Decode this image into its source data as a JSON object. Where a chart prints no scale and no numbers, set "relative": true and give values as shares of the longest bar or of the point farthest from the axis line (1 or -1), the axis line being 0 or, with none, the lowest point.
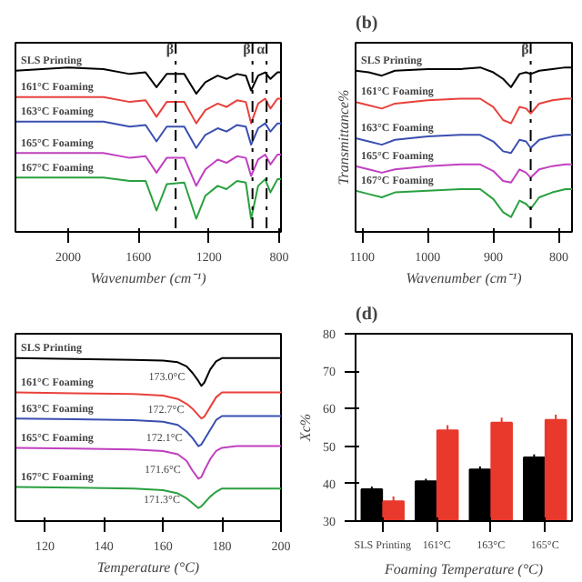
{
  "chart_data": [
    {
      "type": "line",
      "relative": true,
      "xlabel": "Wavenumber (cm⁻¹)",
      "xlim": [
        2300,
        790
      ],
      "xticks": [
        2000,
        1600,
        1200,
        800
      ],
      "x": [
        2300,
        2000,
        1800,
        1650,
        1560,
        1498,
        1440,
        1340,
        1272,
        1220,
        1150,
        1100,
        1040,
        990,
        960,
        920,
        880,
        850,
        810,
        790
      ],
      "series": [
        {
          "name": "SLS Printing",
          "color": "#000000",
          "values": [
            0.98,
            1.0,
            0.99,
            0.96,
            0.97,
            0.88,
            0.96,
            0.96,
            0.84,
            0.91,
            0.95,
            0.93,
            0.96,
            0.95,
            0.86,
            0.95,
            0.97,
            0.93,
            0.97,
            0.97
          ]
        },
        {
          "name": "161°C Foaming",
          "color": "#e8413c",
          "values": [
            0.82,
            0.82,
            0.82,
            0.79,
            0.8,
            0.7,
            0.79,
            0.79,
            0.66,
            0.74,
            0.78,
            0.76,
            0.8,
            0.79,
            0.66,
            0.78,
            0.81,
            0.75,
            0.81,
            0.81
          ]
        },
        {
          "name": "163°C Foaming",
          "color": "#3a4fb0",
          "values": [
            0.67,
            0.67,
            0.67,
            0.64,
            0.65,
            0.55,
            0.64,
            0.64,
            0.51,
            0.59,
            0.63,
            0.61,
            0.65,
            0.64,
            0.53,
            0.63,
            0.66,
            0.61,
            0.66,
            0.66
          ]
        },
        {
          "name": "165°C Foaming",
          "color": "#c040c0",
          "values": [
            0.48,
            0.48,
            0.48,
            0.45,
            0.46,
            0.36,
            0.45,
            0.45,
            0.28,
            0.38,
            0.44,
            0.42,
            0.46,
            0.45,
            0.34,
            0.44,
            0.47,
            0.41,
            0.47,
            0.47
          ]
        },
        {
          "name": "167°C Foaming",
          "color": "#2aa040",
          "values": [
            0.33,
            0.33,
            0.33,
            0.31,
            0.31,
            0.13,
            0.29,
            0.3,
            0.08,
            0.22,
            0.28,
            0.26,
            0.31,
            0.3,
            0.08,
            0.28,
            0.32,
            0.24,
            0.32,
            0.32
          ]
        }
      ],
      "ref_lines": [
        {
          "axis": "x",
          "value": 1389,
          "label": "β",
          "line_style": "dashdot"
        },
        {
          "axis": "x",
          "value": 952,
          "label": "β",
          "line_style": "dashdot"
        },
        {
          "axis": "x",
          "value": 872,
          "label": "α",
          "line_style": "dashdot"
        }
      ]
    },
    {
      "type": "line",
      "relative": true,
      "title": "(b)",
      "xlabel": "Wavenumber (cm⁻¹)",
      "ylabel": "Transmittance%",
      "xlim": [
        1110,
        780
      ],
      "xticks": [
        1100,
        1000,
        900,
        800
      ],
      "x": [
        1110,
        1090,
        1070,
        1050,
        1000,
        950,
        920,
        900,
        885,
        873,
        860,
        850,
        843,
        830,
        810,
        790,
        780
      ],
      "series": [
        {
          "name": "SLS Printing",
          "color": "#000000",
          "values": [
            0.98,
            0.97,
            0.95,
            0.98,
            0.99,
            0.99,
            1.0,
            0.97,
            0.93,
            0.88,
            0.96,
            0.97,
            0.96,
            0.98,
            0.99,
            1.0,
            1.0
          ]
        },
        {
          "name": "161°C Foaming",
          "color": "#e8413c",
          "values": [
            0.79,
            0.77,
            0.75,
            0.78,
            0.8,
            0.81,
            0.81,
            0.76,
            0.68,
            0.66,
            0.76,
            0.75,
            0.72,
            0.78,
            0.8,
            0.81,
            0.81
          ]
        },
        {
          "name": "163°C Foaming",
          "color": "#3a4fb0",
          "values": [
            0.57,
            0.55,
            0.53,
            0.56,
            0.58,
            0.59,
            0.59,
            0.55,
            0.49,
            0.48,
            0.56,
            0.55,
            0.51,
            0.56,
            0.58,
            0.59,
            0.59
          ]
        },
        {
          "name": "165°C Foaming",
          "color": "#c040c0",
          "values": [
            0.4,
            0.38,
            0.36,
            0.38,
            0.4,
            0.41,
            0.41,
            0.37,
            0.31,
            0.3,
            0.38,
            0.36,
            0.33,
            0.38,
            0.4,
            0.41,
            0.41
          ]
        },
        {
          "name": "167°C Foaming",
          "color": "#2aa040",
          "values": [
            0.25,
            0.23,
            0.21,
            0.24,
            0.25,
            0.26,
            0.26,
            0.2,
            0.12,
            0.09,
            0.19,
            0.17,
            0.14,
            0.21,
            0.24,
            0.26,
            0.26
          ]
        }
      ],
      "ref_lines": [
        {
          "axis": "x",
          "value": 843,
          "label": "β",
          "line_style": "dashdot"
        }
      ]
    },
    {
      "type": "line",
      "relative": true,
      "xlabel": "Temperature (°C)",
      "xlim": [
        110,
        200
      ],
      "xticks": [
        120,
        140,
        160,
        180,
        200
      ],
      "x": [
        110,
        130,
        150,
        160,
        165,
        168,
        170,
        172,
        173,
        174,
        176,
        178,
        180,
        185,
        200
      ],
      "series": [
        {
          "name": "SLS Printing",
          "color": "#000000",
          "values": [
            1.0,
            0.995,
            0.99,
            0.985,
            0.975,
            0.95,
            0.91,
            0.86,
            0.83,
            0.85,
            0.93,
            0.98,
            1.0,
            1.0,
            1.0
          ]
        },
        {
          "name": "161°C Foaming",
          "color": "#e8413c",
          "values": [
            0.79,
            0.785,
            0.78,
            0.77,
            0.75,
            0.72,
            0.69,
            0.65,
            0.63,
            0.64,
            0.7,
            0.76,
            0.79,
            0.79,
            0.79
          ]
        },
        {
          "name": "163°C Foaming",
          "color": "#3a4fb0",
          "values": [
            0.63,
            0.625,
            0.62,
            0.61,
            0.59,
            0.55,
            0.51,
            0.46,
            0.47,
            0.5,
            0.56,
            0.62,
            0.645,
            0.645,
            0.645
          ]
        },
        {
          "name": "165°C Foaming",
          "color": "#c040c0",
          "values": [
            0.45,
            0.445,
            0.44,
            0.43,
            0.41,
            0.37,
            0.31,
            0.26,
            0.27,
            0.31,
            0.38,
            0.43,
            0.45,
            0.46,
            0.46
          ]
        },
        {
          "name": "167°C Foaming",
          "color": "#2aa040",
          "values": [
            0.21,
            0.205,
            0.2,
            0.19,
            0.17,
            0.14,
            0.11,
            0.08,
            0.09,
            0.11,
            0.15,
            0.18,
            0.2,
            0.2,
            0.2
          ]
        }
      ],
      "annotations": [
        {
          "text": "173.0°C",
          "x": 173,
          "y": 0.83
        },
        {
          "text": "172.7°C",
          "x": 172.7,
          "y": 0.63
        },
        {
          "text": "172.1°C",
          "x": 172.1,
          "y": 0.46
        },
        {
          "text": "171.6°C",
          "x": 171.6,
          "y": 0.26
        },
        {
          "text": "171.3°C",
          "x": 171.3,
          "y": 0.08
        }
      ]
    },
    {
      "type": "bar",
      "title": "(d)",
      "xlabel": "Foaming Temperature (°C)",
      "ylabel": "Xc%",
      "ylim": [
        30,
        80
      ],
      "yticks": [
        30,
        40,
        50,
        60,
        70,
        80
      ],
      "categories": [
        "SLS Printing",
        "161°C",
        "163°C",
        "165°C"
      ],
      "series": [
        {
          "color": "#000000",
          "values": [
            38.5,
            40.6,
            43.8,
            47.0
          ],
          "errors": [
            0.7,
            0.7,
            0.8,
            0.8
          ]
        },
        {
          "color": "#e8392c",
          "values": [
            35.3,
            54.2,
            56.3,
            57.0
          ],
          "errors": [
            1.3,
            1.4,
            1.3,
            1.4
          ]
        }
      ]
    }
  ]
}
